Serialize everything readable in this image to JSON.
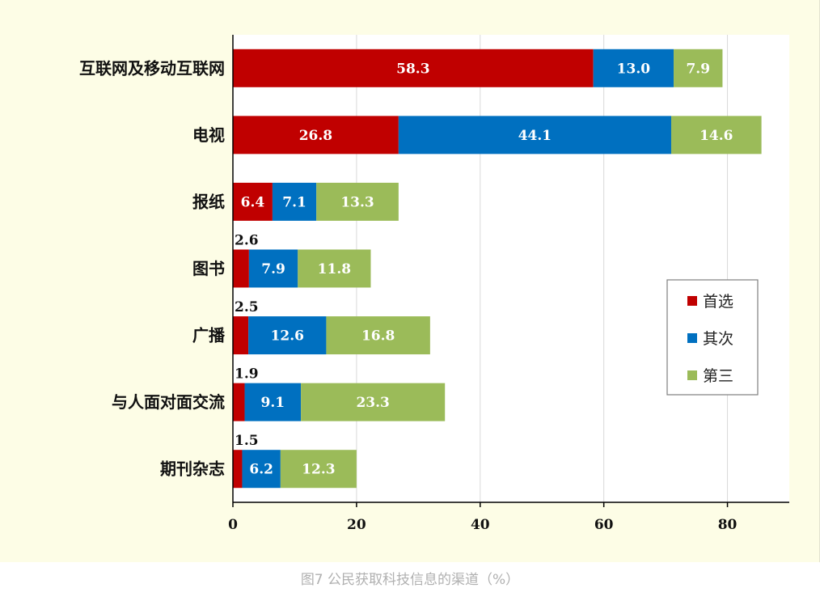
{
  "caption": "图7 公民获取科技信息的渠道（%）",
  "chart_data": {
    "type": "bar",
    "orientation": "horizontal",
    "stacked": true,
    "categories": [
      "互联网及移动互联网",
      "电视",
      "报纸",
      "图书",
      "广播",
      "与人面对面交流",
      "期刊杂志"
    ],
    "series": [
      {
        "name": "首选",
        "color": "#c00000",
        "values": [
          58.3,
          26.8,
          6.4,
          2.6,
          2.5,
          1.9,
          1.5
        ]
      },
      {
        "name": "其次",
        "color": "#0070c0",
        "values": [
          13.0,
          44.1,
          7.1,
          7.9,
          12.6,
          9.1,
          6.2
        ]
      },
      {
        "name": "第三",
        "color": "#9bbb59",
        "values": [
          7.9,
          14.6,
          13.3,
          11.8,
          16.8,
          23.3,
          12.3
        ]
      }
    ],
    "value_labels": [
      [
        "58.3",
        "26.8",
        "6.4",
        "2.6",
        "2.5",
        "1.9",
        "1.5"
      ],
      [
        "13.0",
        "44.1",
        "7.1",
        "7.9",
        "12.6",
        "9.1",
        "6.2"
      ],
      [
        "7.9",
        "14.6",
        "13.3",
        "11.8",
        "16.8",
        "23.3",
        "12.3"
      ]
    ],
    "xlim": [
      0,
      90
    ],
    "xticks": [
      0,
      20,
      40,
      60,
      80
    ],
    "grid": true,
    "legend_position": "right"
  }
}
